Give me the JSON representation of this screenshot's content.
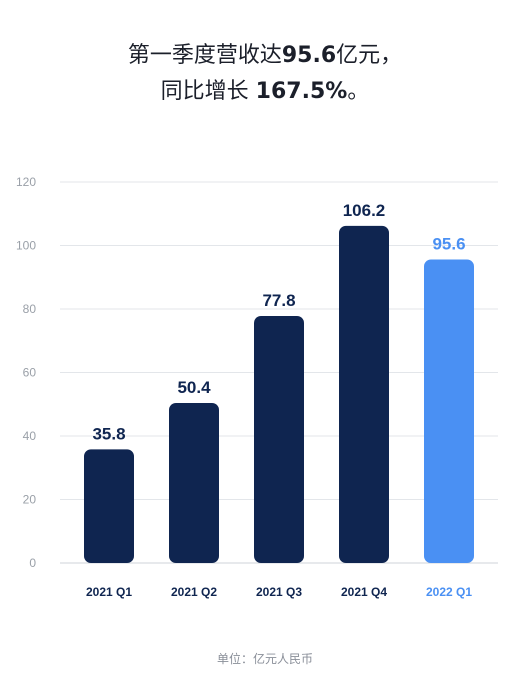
{
  "header": {
    "line1_prefix": "第一季度营收达",
    "line1_value": "95.6",
    "line1_suffix": "亿元，",
    "line2_prefix": "同比增长 ",
    "line2_value": "167.5%",
    "line2_suffix": "。"
  },
  "unit_note": "单位：亿元人民币",
  "colors": {
    "past_bar": "#0f2550",
    "current_bar": "#4a90f3",
    "grid": "#e3e6ea",
    "axis_text": "#9aa0a8"
  },
  "chart_data": {
    "type": "bar",
    "categories": [
      "2021 Q1",
      "2021 Q2",
      "2021 Q3",
      "2021 Q4",
      "2022 Q1"
    ],
    "values": [
      35.8,
      50.4,
      77.8,
      106.2,
      95.6
    ],
    "value_labels": [
      "35.8",
      "50.4",
      "77.8",
      "106.2",
      "95.6"
    ],
    "highlight_index": 4,
    "ylim": [
      0,
      120
    ],
    "yticks": [
      0,
      20,
      40,
      60,
      80,
      100,
      120
    ],
    "grid": true,
    "xlabel": "",
    "ylabel": ""
  }
}
